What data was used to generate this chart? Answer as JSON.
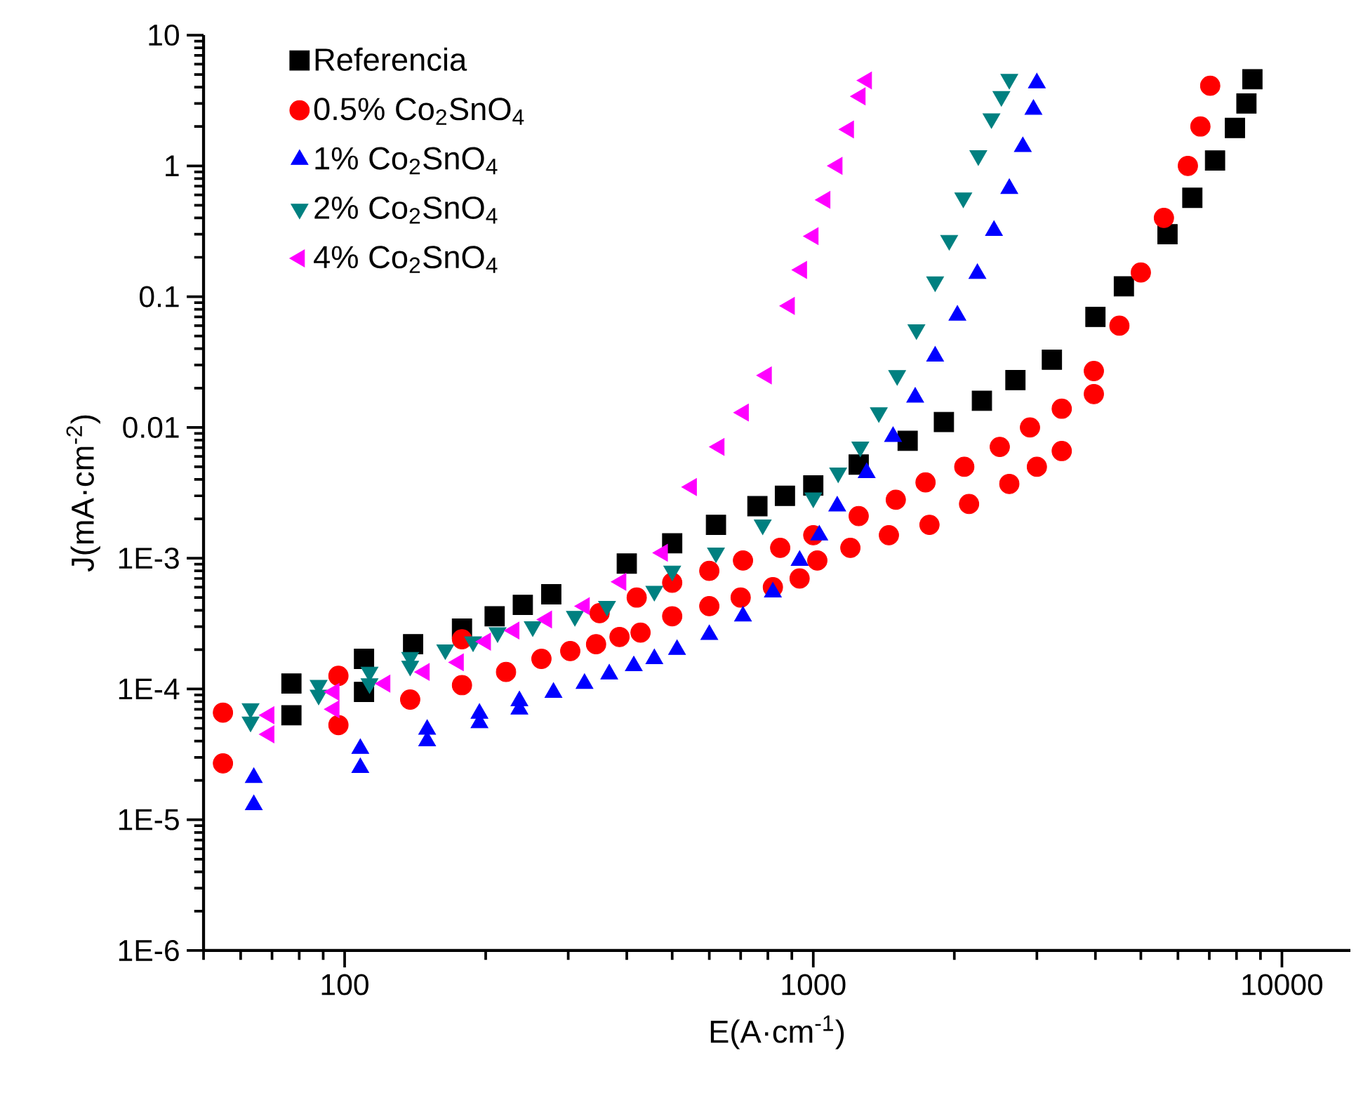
{
  "chart_data": {
    "type": "scatter",
    "xlabel": "E(A·cm$^{-1}$)",
    "ylabel": "J(mA·cm$^{-2}$)",
    "log": "xy",
    "xlim": [
      50,
      14000
    ],
    "xticks": [
      100,
      1000,
      10000
    ],
    "ylim": [
      1e-06,
      10
    ],
    "yticks": [
      {
        "value": 1e-06,
        "label": "1E-6"
      },
      {
        "value": 1e-05,
        "label": "1E-5"
      },
      {
        "value": 0.0001,
        "label": "1E-4"
      },
      {
        "value": 0.001,
        "label": "1E-3"
      },
      0.01,
      0.1,
      1,
      10
    ],
    "legend": "top left",
    "grid": false,
    "series": [
      {
        "name": "Referencia",
        "color": "#000000",
        "marker": "square",
        "x": [
          77,
          77,
          110,
          110,
          140,
          178,
          209,
          240,
          276,
          400,
          500,
          620,
          760,
          870,
          1000,
          1250,
          1590,
          1900,
          2290,
          2700,
          3230,
          4000,
          4600,
          5700,
          6440,
          7200,
          7940,
          8400,
          8650
        ],
        "values": [
          0.00011,
          6.3e-05,
          0.00017,
          9.5e-05,
          0.00022,
          0.00029,
          0.00036,
          0.00044,
          0.00053,
          0.00091,
          0.0013,
          0.0018,
          0.0025,
          0.003,
          0.0036,
          0.0052,
          0.0079,
          0.011,
          0.016,
          0.023,
          0.033,
          0.07,
          0.12,
          0.3,
          0.57,
          1.1,
          1.95,
          3.0,
          4.6
        ]
      },
      {
        "name": "0.5% Co$_{2}$SnO$_{4}$",
        "color": "#ff0000",
        "marker": "circle",
        "x": [
          55,
          55,
          97,
          97,
          138,
          178,
          178,
          221,
          263,
          303,
          344,
          386,
          428,
          500,
          600,
          700,
          820,
          935,
          1020,
          1200,
          1450,
          1770,
          2150,
          2620,
          3000,
          3390,
          3970,
          350,
          420,
          500,
          600,
          708,
          850,
          1000,
          1250,
          1500,
          1736,
          2100,
          2500,
          2900,
          3390,
          3970,
          4500,
          5000,
          5600,
          6300,
          6700,
          7030
        ],
        "values": [
          6.6e-05,
          2.7e-05,
          0.000126,
          5.3e-05,
          8.3e-05,
          0.000107,
          0.00024,
          0.000135,
          0.00017,
          0.000195,
          0.00022,
          0.00025,
          0.00027,
          0.00036,
          0.00043,
          0.0005,
          0.0006,
          0.0007,
          0.00096,
          0.0012,
          0.0015,
          0.0018,
          0.0026,
          0.0037,
          0.005,
          0.0066,
          0.018,
          0.00038,
          0.0005,
          0.00065,
          0.0008,
          0.00096,
          0.0012,
          0.0015,
          0.0021,
          0.0028,
          0.0038,
          0.005,
          0.0071,
          0.01,
          0.0139,
          0.027,
          0.06,
          0.153,
          0.4,
          1.0,
          2.0,
          4.1
        ]
      },
      {
        "name": "1% Co$_{2}$SnO$_{4}$",
        "color": "#0000ff",
        "marker": "triangle",
        "x": [
          64,
          64,
          108,
          108,
          150,
          150,
          194,
          194,
          236,
          236,
          279,
          325,
          367,
          414,
          458,
          512,
          600,
          708,
          820,
          935,
          1030,
          1125,
          1300,
          1480,
          1650,
          1820,
          2030,
          2240,
          2430,
          2620,
          2800,
          2950,
          3000
        ],
        "values": [
          2.1e-05,
          1.3e-05,
          3.5e-05,
          2.5e-05,
          4.9e-05,
          4e-05,
          6.5e-05,
          5.5e-05,
          8.1e-05,
          7e-05,
          9.4e-05,
          0.00011,
          0.00013,
          0.00015,
          0.00017,
          0.0002,
          0.00026,
          0.00036,
          0.00055,
          0.00096,
          0.0015,
          0.0025,
          0.0045,
          0.0085,
          0.017,
          0.035,
          0.072,
          0.15,
          0.32,
          0.67,
          1.4,
          2.7,
          4.3
        ]
      },
      {
        "name": "2% Co$_{2}$SnO$_{4}$",
        "color": "#008080",
        "marker": "triangle-down",
        "x": [
          63,
          63,
          88,
          88,
          113,
          113,
          138,
          138,
          164,
          188,
          212,
          252,
          310,
          363,
          458,
          500,
          620,
          780,
          1000,
          1130,
          1260,
          1380,
          1510,
          1660,
          1820,
          1950,
          2090,
          2250,
          2400,
          2520,
          2620
        ],
        "values": [
          7.1e-05,
          5.6e-05,
          0.000107,
          9e-05,
          0.000135,
          0.00011,
          0.000175,
          0.00015,
          0.0002,
          0.00023,
          0.00027,
          0.0003,
          0.00036,
          0.00043,
          0.00056,
          0.0008,
          0.0011,
          0.0018,
          0.0029,
          0.0045,
          0.0071,
          0.013,
          0.025,
          0.056,
          0.13,
          0.27,
          0.57,
          1.2,
          2.3,
          3.4,
          4.6
        ]
      },
      {
        "name": "4% Co$_{2}$SnO$_{4}$",
        "color": "#ff00ff",
        "marker": "triangle-left",
        "x": [
          69,
          69,
          95,
          95,
          122,
          148,
          175,
          200,
          230,
          270,
          325,
          389,
          477,
          550,
          630,
          710,
          795,
          890,
          945,
          1000,
          1060,
          1125,
          1190,
          1260,
          1300
        ],
        "values": [
          6.3e-05,
          4.5e-05,
          9.5e-05,
          7e-05,
          0.00011,
          0.000135,
          0.00016,
          0.00023,
          0.00028,
          0.00034,
          0.00043,
          0.00066,
          0.0011,
          0.0035,
          0.0071,
          0.013,
          0.025,
          0.085,
          0.16,
          0.29,
          0.55,
          1.0,
          1.9,
          3.4,
          4.5
        ]
      }
    ]
  }
}
